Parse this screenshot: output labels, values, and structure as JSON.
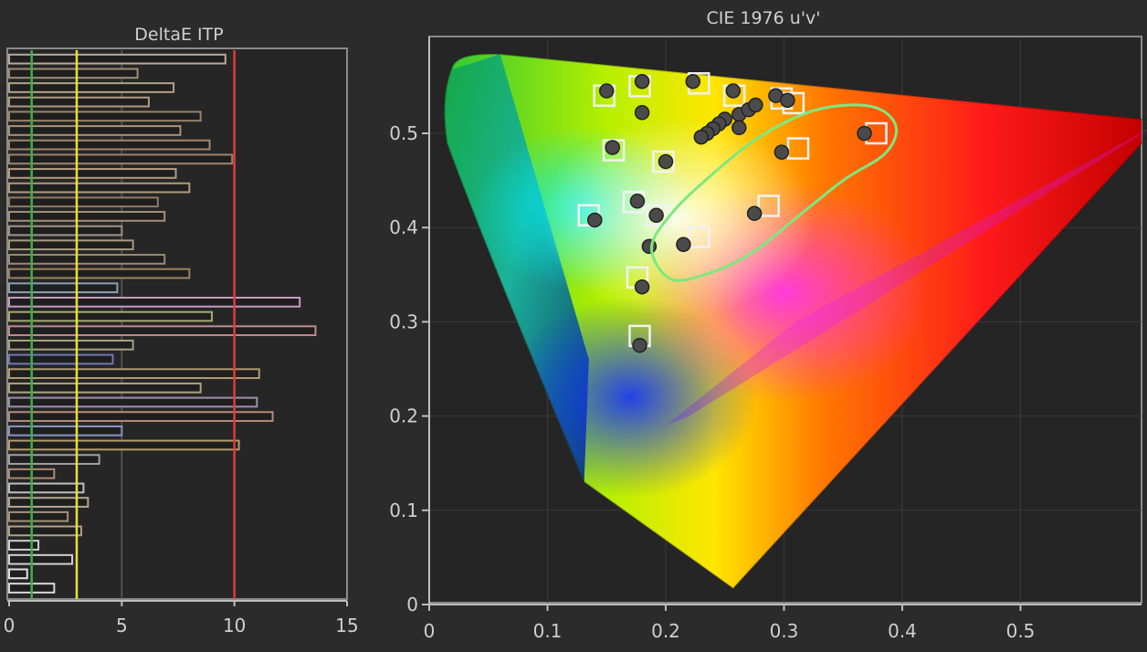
{
  "chart_data": [
    {
      "type": "bar",
      "orientation": "horizontal",
      "title": "DeltaE ITP",
      "xlabel": "",
      "ylabel": "",
      "xlim": [
        0,
        15
      ],
      "x_ticks": [
        "0",
        "5",
        "10",
        "15"
      ],
      "grid": true,
      "reference_lines": [
        {
          "value": 1,
          "color": "#3fae46"
        },
        {
          "value": 3,
          "color": "#e8e03a"
        },
        {
          "value": 10,
          "color": "#e03a3a"
        }
      ],
      "values": [
        9.6,
        5.7,
        7.3,
        6.2,
        8.5,
        7.6,
        8.9,
        9.9,
        7.4,
        8.0,
        6.6,
        6.9,
        5.0,
        5.5,
        6.9,
        8.0,
        4.8,
        12.9,
        9.0,
        13.6,
        5.5,
        4.6,
        11.1,
        8.5,
        11.0,
        11.7,
        5.0,
        10.2,
        4.0,
        2.0,
        3.3,
        3.5,
        2.6,
        3.2,
        1.3,
        2.8,
        0.8,
        2.0
      ],
      "bar_colors": [
        "#b9a89c",
        "#a08b72",
        "#b3a186",
        "#b09a7e",
        "#9a8268",
        "#a99277",
        "#a18769",
        "#9c8468",
        "#b29c82",
        "#b09a7c",
        "#8f7b66",
        "#a59078",
        "#a3938a",
        "#a9997e",
        "#9b8a74",
        "#9e8260",
        "#8aa0b3",
        "#c79bc0",
        "#a7a96c",
        "#c08a8f",
        "#a9a27e",
        "#6f77b6",
        "#b09a6e",
        "#b3a37e",
        "#9f8fae",
        "#b48a7a",
        "#8a93c4",
        "#b39a6b",
        "#a0a0a0",
        "#b08870",
        "#bfbfbf",
        "#b5a590",
        "#a69076",
        "#b3a088",
        "#cfcfcf",
        "#d0d0d0",
        "#e0e0e0",
        "#d8d8d8"
      ]
    },
    {
      "type": "scatter",
      "title": "CIE 1976 u'v'",
      "xlabel": "",
      "ylabel": "",
      "xlim": [
        0,
        0.6
      ],
      "ylim": [
        0,
        0.6
      ],
      "x_ticks": [
        "0",
        "0.1",
        "0.2",
        "0.3",
        "0.4",
        "0.5"
      ],
      "y_ticks": [
        "0",
        "0.1",
        "0.2",
        "0.3",
        "0.4",
        "0.5"
      ],
      "series": [
        {
          "marker": "square",
          "points": [
            [
              0.148,
              0.54
            ],
            [
              0.178,
              0.55
            ],
            [
              0.228,
              0.553
            ],
            [
              0.258,
              0.54
            ],
            [
              0.298,
              0.537
            ],
            [
              0.308,
              0.532
            ],
            [
              0.156,
              0.482
            ],
            [
              0.198,
              0.47
            ],
            [
              0.312,
              0.484
            ],
            [
              0.378,
              0.5
            ],
            [
              0.135,
              0.413
            ],
            [
              0.173,
              0.427
            ],
            [
              0.193,
              0.413
            ],
            [
              0.228,
              0.39
            ],
            [
              0.287,
              0.423
            ],
            [
              0.176,
              0.347
            ],
            [
              0.178,
              0.285
            ]
          ]
        },
        {
          "marker": "circle",
          "points": [
            [
              0.15,
              0.545
            ],
            [
              0.18,
              0.555
            ],
            [
              0.223,
              0.555
            ],
            [
              0.257,
              0.545
            ],
            [
              0.293,
              0.54
            ],
            [
              0.303,
              0.535
            ],
            [
              0.18,
              0.522
            ],
            [
              0.262,
              0.52
            ],
            [
              0.27,
              0.525
            ],
            [
              0.276,
              0.53
            ],
            [
              0.25,
              0.515
            ],
            [
              0.245,
              0.51
            ],
            [
              0.24,
              0.505
            ],
            [
              0.262,
              0.506
            ],
            [
              0.235,
              0.5
            ],
            [
              0.23,
              0.496
            ],
            [
              0.155,
              0.485
            ],
            [
              0.2,
              0.47
            ],
            [
              0.298,
              0.48
            ],
            [
              0.368,
              0.5
            ],
            [
              0.14,
              0.408
            ],
            [
              0.176,
              0.428
            ],
            [
              0.192,
              0.413
            ],
            [
              0.215,
              0.382
            ],
            [
              0.275,
              0.415
            ],
            [
              0.186,
              0.38
            ],
            [
              0.18,
              0.337
            ],
            [
              0.178,
              0.275
            ]
          ]
        }
      ],
      "gamut_outline": [
        [
          0.257,
          0.017
        ],
        [
          0.131,
          0.13
        ],
        [
          0.05,
          0.37
        ],
        [
          0.015,
          0.49
        ],
        [
          0.009,
          0.54
        ],
        [
          0.02,
          0.572
        ],
        [
          0.06,
          0.584
        ],
        [
          0.62,
          0.513
        ],
        [
          0.257,
          0.017
        ]
      ],
      "annotation": {
        "shape": "freehand-loop",
        "color": "#7ee87e"
      }
    }
  ]
}
